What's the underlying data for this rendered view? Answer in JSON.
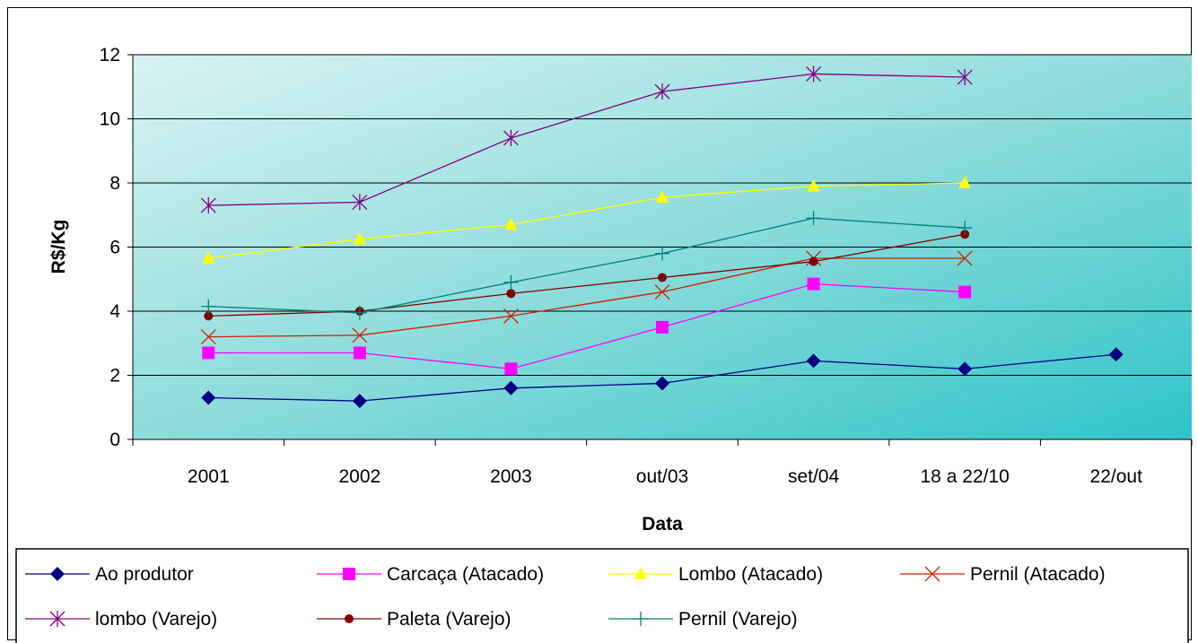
{
  "chart_data": {
    "type": "line",
    "title": "",
    "xlabel": "Data",
    "ylabel": "R$/Kg",
    "ylim": [
      0,
      12
    ],
    "y_ticks": [
      0,
      2,
      4,
      6,
      8,
      10,
      12
    ],
    "grid": "horizontal",
    "legend_position": "bottom",
    "plot_background": "teal gradient",
    "categories": [
      "2001",
      "2002",
      "2003",
      "out/03",
      "set/04",
      "18 a 22/10",
      "22/out"
    ],
    "series": [
      {
        "name": "Ao produtor",
        "color": "#000080",
        "marker": "diamond",
        "values": [
          1.3,
          1.2,
          1.6,
          1.75,
          2.45,
          2.2,
          2.65
        ]
      },
      {
        "name": "Carcaça (Atacado)",
        "color": "#FF00FF",
        "marker": "square",
        "values": [
          2.7,
          2.7,
          2.2,
          3.5,
          4.85,
          4.6,
          null
        ]
      },
      {
        "name": "Lombo (Atacado)",
        "color": "#FFFF00",
        "marker": "triangle",
        "values": [
          5.65,
          6.25,
          6.7,
          7.55,
          7.9,
          8.0,
          null
        ]
      },
      {
        "name": "Pernil (Atacado)",
        "color": "#CC2200",
        "marker": "x",
        "values": [
          3.2,
          3.25,
          3.85,
          4.6,
          5.65,
          5.65,
          null
        ]
      },
      {
        "name": "lombo (Varejo)",
        "color": "#800080",
        "marker": "star",
        "values": [
          7.3,
          7.4,
          9.4,
          10.85,
          11.4,
          11.3,
          null
        ]
      },
      {
        "name": "Paleta (Varejo)",
        "color": "#800000",
        "marker": "circle",
        "values": [
          3.85,
          4.0,
          4.55,
          5.05,
          5.55,
          6.4,
          null
        ]
      },
      {
        "name": "Pernil (Varejo)",
        "color": "#008080",
        "marker": "plus",
        "values": [
          4.15,
          3.95,
          4.9,
          5.8,
          6.9,
          6.6,
          null
        ]
      }
    ]
  }
}
